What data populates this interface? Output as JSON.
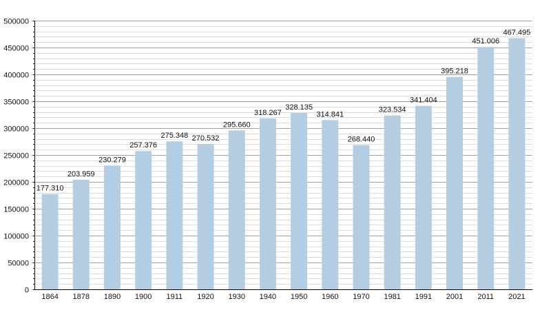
{
  "chart_data": {
    "type": "bar",
    "categories": [
      "1864",
      "1878",
      "1890",
      "1900",
      "1911",
      "1920",
      "1930",
      "1940",
      "1950",
      "1960",
      "1970",
      "1981",
      "1991",
      "2001",
      "2011",
      "2021"
    ],
    "values": [
      177310,
      203959,
      230279,
      257376,
      275348,
      270532,
      295660,
      318267,
      328135,
      314841,
      268440,
      323534,
      341404,
      395218,
      451006,
      467495
    ],
    "data_labels": [
      "177.310",
      "203.959",
      "230.279",
      "257.376",
      "275.348",
      "270.532",
      "295.660",
      "318.267",
      "328.135",
      "314.841",
      "268.440",
      "323.534",
      "341.404",
      "395.218",
      "451.006",
      "467.495"
    ],
    "yticks": [
      "0",
      "50000",
      "100000",
      "150000",
      "200000",
      "250000",
      "300000",
      "350000",
      "400000",
      "450000",
      "500000"
    ],
    "ylim": [
      0,
      500000
    ],
    "grid": true,
    "bar_color": "#b3cde3",
    "major_grid_color": "#a0a0a0",
    "minor_grid_color": "#dcdcdc"
  }
}
